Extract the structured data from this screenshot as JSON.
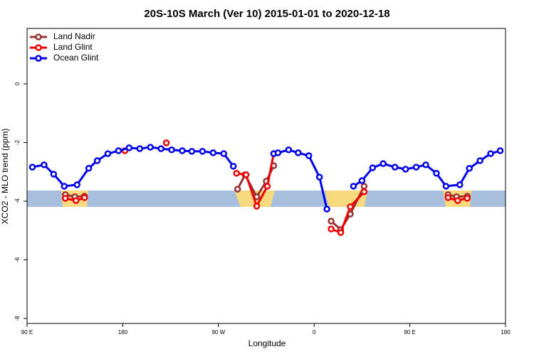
{
  "chart_data": {
    "type": "line",
    "title": "20S-10S March (Ver 10)   2015-01-01 to 2020-12-18",
    "x_label": "Longitude",
    "y_label": "XCO2 - MLO trend (ppm)",
    "xlim": [
      90,
      540
    ],
    "xticks": [
      {
        "value": 90,
        "label": "90 E"
      },
      {
        "value": 180,
        "label": "180"
      },
      {
        "value": 270,
        "label": "90 W"
      },
      {
        "value": 360,
        "label": "0"
      },
      {
        "value": 450,
        "label": "90 E"
      },
      {
        "value": 540,
        "label": "180"
      }
    ],
    "ylim": [
      -8.17,
      1.89
    ],
    "yticks": [
      0,
      -2,
      -4,
      -6,
      -8
    ],
    "legend": "top-left",
    "series": [
      {
        "name": "Land Nadir",
        "color": "#993333",
        "x": [
          126,
          135,
          144,
          null,
          288,
          295,
          306,
          315,
          322,
          null,
          376,
          385,
          394,
          407,
          null,
          486,
          494,
          504
        ],
        "values": [
          -3.78,
          -3.85,
          -3.83,
          null,
          -3.59,
          -3.1,
          -3.85,
          -3.32,
          -2.79,
          null,
          -4.68,
          -4.97,
          -4.44,
          -3.49,
          null,
          -3.78,
          -3.85,
          -3.83
        ]
      },
      {
        "name": "Land Glint",
        "color": "#ee0000",
        "x": [
          126,
          136,
          144,
          null,
          182,
          null,
          221,
          null,
          287,
          296,
          306,
          316,
          322,
          null,
          376,
          385,
          394,
          407,
          null,
          486,
          495,
          504
        ],
        "values": [
          -3.9,
          -3.98,
          -3.88,
          null,
          -2.28,
          null,
          -2.01,
          null,
          -3.05,
          -3.1,
          -4.17,
          -3.49,
          -2.38,
          null,
          -4.95,
          -5.07,
          -4.19,
          -3.68,
          null,
          -3.88,
          -3.98,
          -3.9
        ]
      },
      {
        "name": "Ocean Glint",
        "color": "#0000ee",
        "x": [
          95,
          106,
          115,
          125,
          137,
          148,
          156,
          166,
          176,
          186,
          196,
          206,
          216,
          226,
          236,
          245,
          255,
          265,
          275,
          284,
          null,
          322,
          326,
          336,
          345,
          355,
          365,
          372,
          null,
          397,
          405,
          415,
          425,
          436,
          446,
          456,
          465,
          475,
          484,
          497,
          506,
          516,
          526,
          535
        ],
        "values": [
          -2.84,
          -2.76,
          -3.08,
          -3.49,
          -3.44,
          -2.88,
          -2.62,
          -2.38,
          -2.28,
          -2.18,
          -2.21,
          -2.16,
          -2.21,
          -2.25,
          -2.28,
          -2.3,
          -2.3,
          -2.35,
          -2.38,
          -2.81,
          null,
          -2.38,
          -2.35,
          -2.25,
          -2.35,
          -2.45,
          -3.18,
          -4.27,
          null,
          -3.49,
          -3.3,
          -2.86,
          -2.72,
          -2.84,
          -2.91,
          -2.84,
          -2.76,
          -3.05,
          -3.49,
          -3.44,
          -2.88,
          -2.62,
          -2.38,
          -2.28
        ]
      }
    ]
  }
}
